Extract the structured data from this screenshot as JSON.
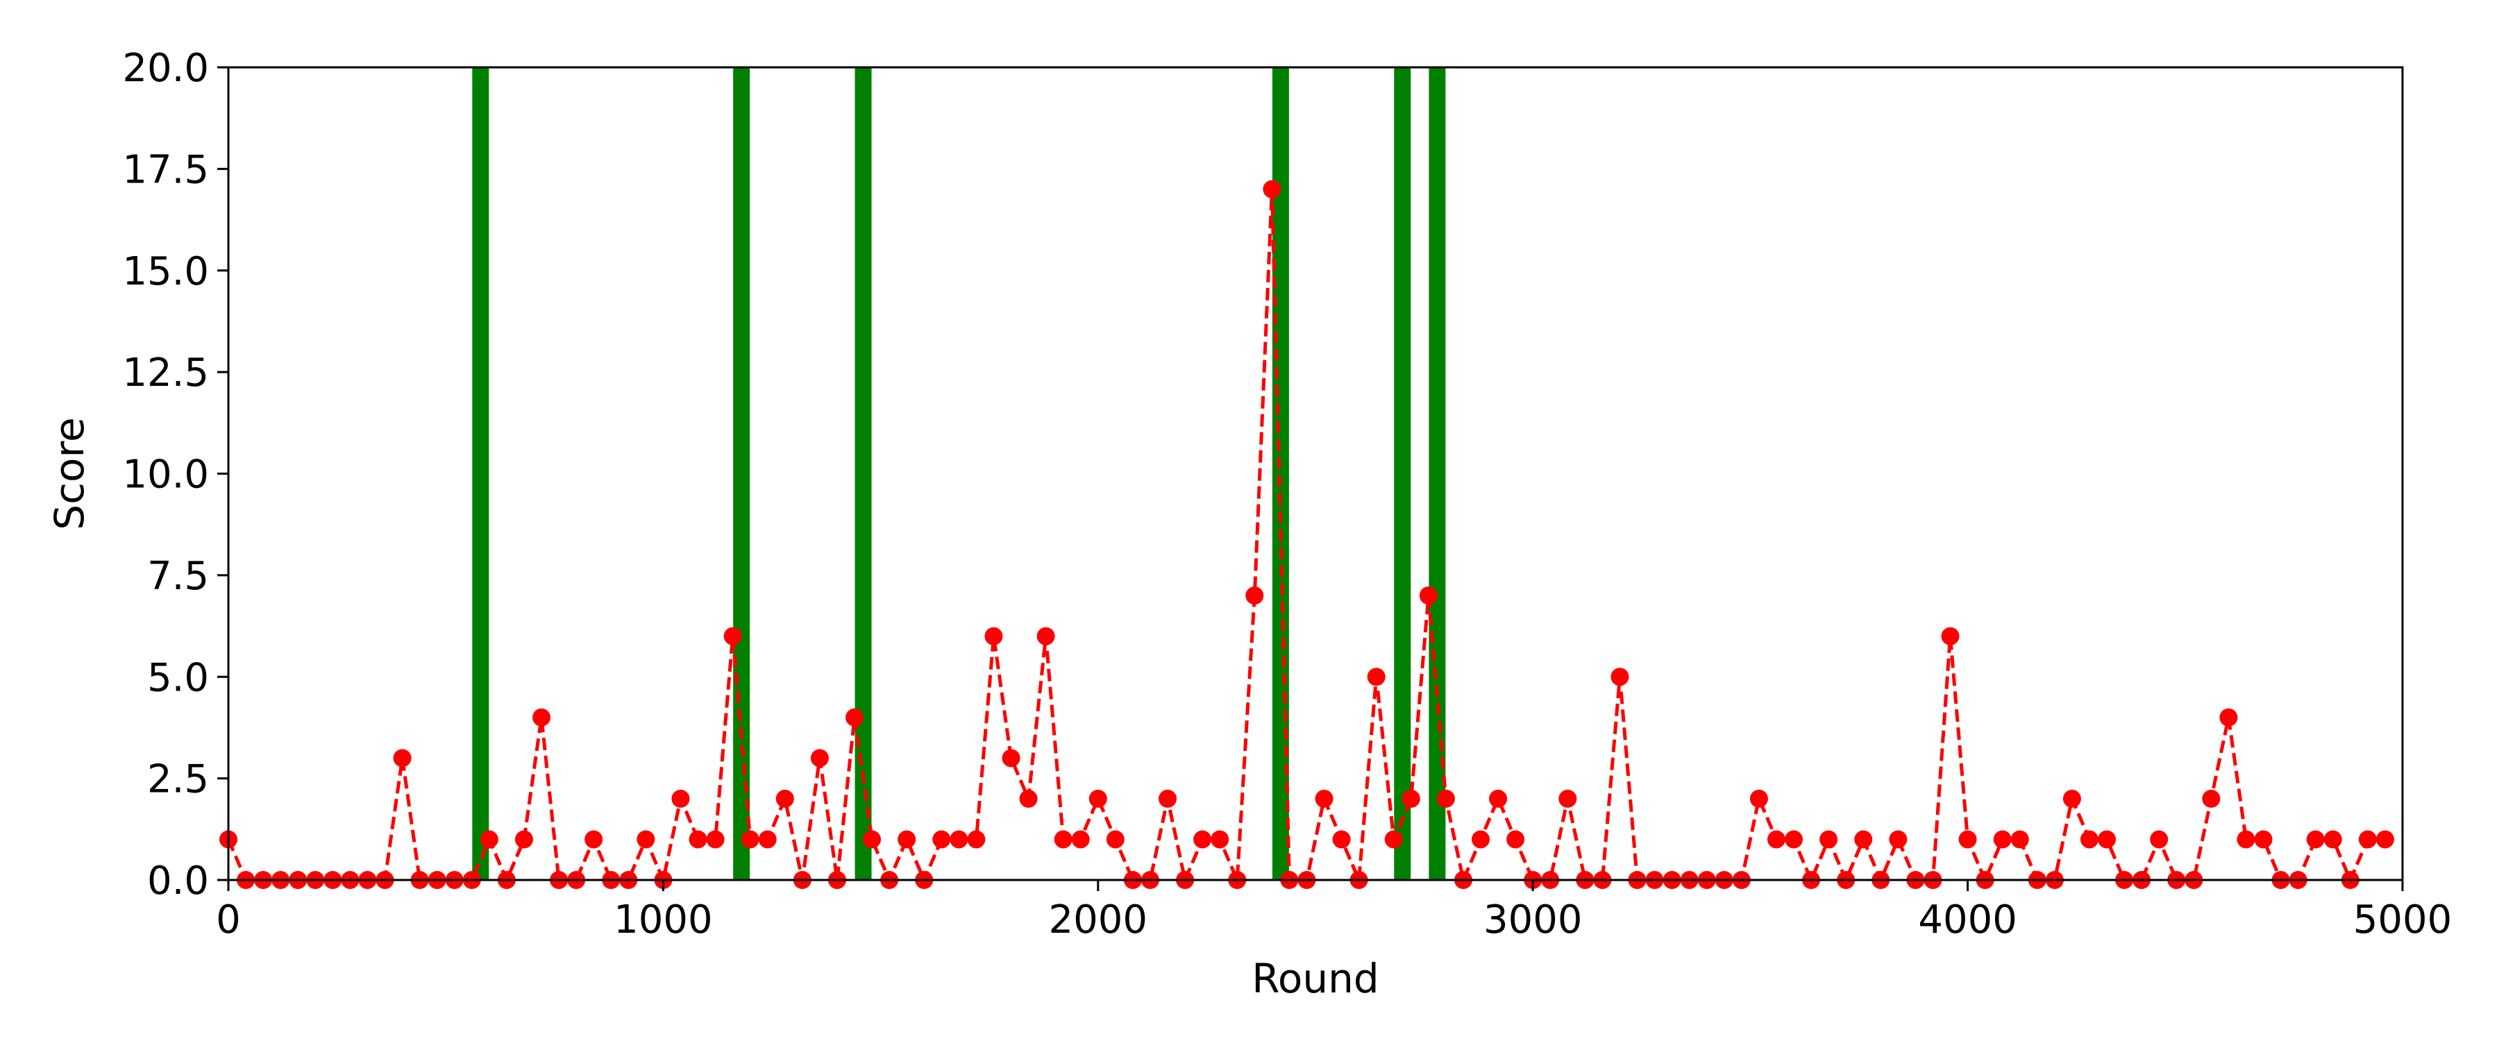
{
  "chart_data": {
    "type": "line",
    "title": "",
    "xlabel": "Round",
    "ylabel": "Score",
    "xlim": [
      0,
      5000
    ],
    "ylim": [
      0,
      20
    ],
    "xticks": [
      0,
      1000,
      2000,
      3000,
      4000,
      5000
    ],
    "xtick_labels": [
      "0",
      "1000",
      "2000",
      "3000",
      "4000",
      "5000"
    ],
    "yticks": [
      0,
      2.5,
      5,
      7.5,
      10,
      12.5,
      15,
      17.5,
      20
    ],
    "ytick_labels": [
      "0.0",
      "2.5",
      "5.0",
      "7.5",
      "10.0",
      "12.5",
      "15.0",
      "17.5",
      "20.0"
    ],
    "grid": false,
    "legend": "none",
    "series": [
      {
        "style": "dashed line with circle markers",
        "color": "#ff0000",
        "x": [
          0,
          40,
          80,
          120,
          160,
          200,
          240,
          280,
          320,
          360,
          400,
          440,
          480,
          520,
          560,
          600,
          640,
          680,
          720,
          760,
          800,
          840,
          880,
          920,
          960,
          1000,
          1040,
          1080,
          1120,
          1160,
          1200,
          1240,
          1280,
          1320,
          1360,
          1400,
          1440,
          1480,
          1520,
          1560,
          1600,
          1640,
          1680,
          1720,
          1760,
          1800,
          1840,
          1880,
          1920,
          1960,
          2000,
          2040,
          2080,
          2120,
          2160,
          2200,
          2240,
          2280,
          2320,
          2360,
          2400,
          2440,
          2480,
          2520,
          2560,
          2600,
          2640,
          2680,
          2720,
          2760,
          2800,
          2840,
          2880,
          2920,
          2960,
          3000,
          3040,
          3080,
          3120,
          3160,
          3200,
          3240,
          3280,
          3320,
          3360,
          3400,
          3440,
          3480,
          3520,
          3560,
          3600,
          3640,
          3680,
          3720,
          3760,
          3800,
          3840,
          3880,
          3920,
          3960,
          4000,
          4040,
          4080,
          4120,
          4160,
          4200,
          4240,
          4280,
          4320,
          4360,
          4400,
          4440,
          4480,
          4520,
          4560,
          4600,
          4640,
          4680,
          4720,
          4760,
          4800,
          4840,
          4880,
          4920,
          4960
        ],
        "values": [
          1,
          0,
          0,
          0,
          0,
          0,
          0,
          0,
          0,
          0,
          3,
          0,
          0,
          0,
          0,
          1,
          0,
          1,
          4,
          0,
          0,
          1,
          0,
          0,
          1,
          0,
          2,
          1,
          1,
          6,
          1,
          1,
          2,
          0,
          3,
          0,
          4,
          1,
          0,
          1,
          0,
          1,
          1,
          1,
          6,
          3,
          2,
          6,
          1,
          1,
          2,
          1,
          0,
          0,
          2,
          0,
          1,
          1,
          0,
          7,
          17,
          0,
          0,
          2,
          1,
          0,
          5,
          1,
          2,
          7,
          2,
          0,
          1,
          2,
          1,
          0,
          0,
          2,
          0,
          0,
          5,
          0,
          0,
          0,
          0,
          0,
          0,
          0,
          2,
          1,
          1,
          0,
          1,
          0,
          1,
          0,
          1,
          0,
          0,
          6,
          1,
          0,
          1,
          1,
          0,
          0,
          2,
          1,
          1,
          0,
          0,
          1,
          0,
          0,
          2,
          4,
          1,
          1,
          0,
          0,
          1,
          1,
          0,
          1,
          1
        ]
      }
    ],
    "vertical_markers": {
      "color": "#008000",
      "x": [
        580,
        1180,
        1460,
        2420,
        2700,
        2780
      ]
    }
  }
}
